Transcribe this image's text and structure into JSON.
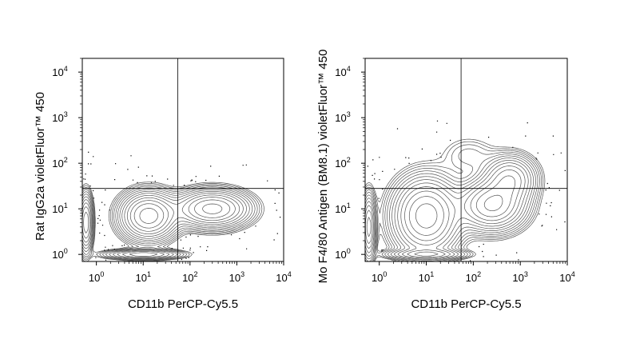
{
  "chart_data": [
    {
      "type": "contour",
      "xlabel": "CD11b PerCP-Cy5.5",
      "ylabel": "Rat IgG2a violetFluor™ 450",
      "x_scale": "log",
      "y_scale": "log",
      "xlim": [
        0.5,
        10000
      ],
      "ylim": [
        0.7,
        20000
      ],
      "x_ticks": [
        {
          "value": 1,
          "base": "10",
          "exp": "0"
        },
        {
          "value": 10,
          "base": "10",
          "exp": "1"
        },
        {
          "value": 100,
          "base": "10",
          "exp": "2"
        },
        {
          "value": 1000,
          "base": "10",
          "exp": "3"
        },
        {
          "value": 10000,
          "base": "10",
          "exp": "4"
        }
      ],
      "y_ticks": [
        {
          "value": 1,
          "base": "10",
          "exp": "0"
        },
        {
          "value": 10,
          "base": "10",
          "exp": "1"
        },
        {
          "value": 100,
          "base": "10",
          "exp": "2"
        },
        {
          "value": 1000,
          "base": "10",
          "exp": "3"
        },
        {
          "value": 10000,
          "base": "10",
          "exp": "4"
        }
      ],
      "quadrant_gate": {
        "x": 55,
        "y": 28
      },
      "populations": [
        {
          "x": 13,
          "y": 7,
          "spread_x": 0.32,
          "spread_y": 0.28,
          "weight": 1.0
        },
        {
          "x": 300,
          "y": 10,
          "spread_x": 0.42,
          "spread_y": 0.22,
          "weight": 0.95
        },
        {
          "x": 0.6,
          "y": 5,
          "spread_x": 0.08,
          "spread_y": 0.35,
          "weight": 0.6
        },
        {
          "x": 10,
          "y": 1,
          "spread_x": 0.45,
          "spread_y": 0.06,
          "weight": 0.45
        }
      ]
    },
    {
      "type": "contour",
      "xlabel": "CD11b PerCP-Cy5.5",
      "ylabel": "Mo F4/80 Antigen (BM8.1) violetFluor™ 450",
      "x_scale": "log",
      "y_scale": "log",
      "xlim": [
        0.5,
        10000
      ],
      "ylim": [
        0.7,
        20000
      ],
      "x_ticks": [
        {
          "value": 1,
          "base": "10",
          "exp": "0"
        },
        {
          "value": 10,
          "base": "10",
          "exp": "1"
        },
        {
          "value": 100,
          "base": "10",
          "exp": "2"
        },
        {
          "value": 1000,
          "base": "10",
          "exp": "3"
        },
        {
          "value": 10000,
          "base": "10",
          "exp": "4"
        }
      ],
      "y_ticks": [
        {
          "value": 1,
          "base": "10",
          "exp": "0"
        },
        {
          "value": 10,
          "base": "10",
          "exp": "1"
        },
        {
          "value": 100,
          "base": "10",
          "exp": "2"
        },
        {
          "value": 1000,
          "base": "10",
          "exp": "3"
        },
        {
          "value": 10000,
          "base": "10",
          "exp": "4"
        }
      ],
      "quadrant_gate": {
        "x": 55,
        "y": 28
      },
      "populations": [
        {
          "x": 10,
          "y": 7,
          "spread_x": 0.38,
          "spread_y": 0.45,
          "weight": 1.0
        },
        {
          "x": 250,
          "y": 12,
          "spread_x": 0.38,
          "spread_y": 0.3,
          "weight": 0.9
        },
        {
          "x": 600,
          "y": 45,
          "spread_x": 0.3,
          "spread_y": 0.28,
          "weight": 0.6
        },
        {
          "x": 0.6,
          "y": 4,
          "spread_x": 0.08,
          "spread_y": 0.4,
          "weight": 0.55
        },
        {
          "x": 10,
          "y": 1,
          "spread_x": 0.45,
          "spread_y": 0.06,
          "weight": 0.4
        },
        {
          "x": 80,
          "y": 150,
          "spread_x": 0.35,
          "spread_y": 0.25,
          "weight": 0.08
        }
      ]
    }
  ]
}
